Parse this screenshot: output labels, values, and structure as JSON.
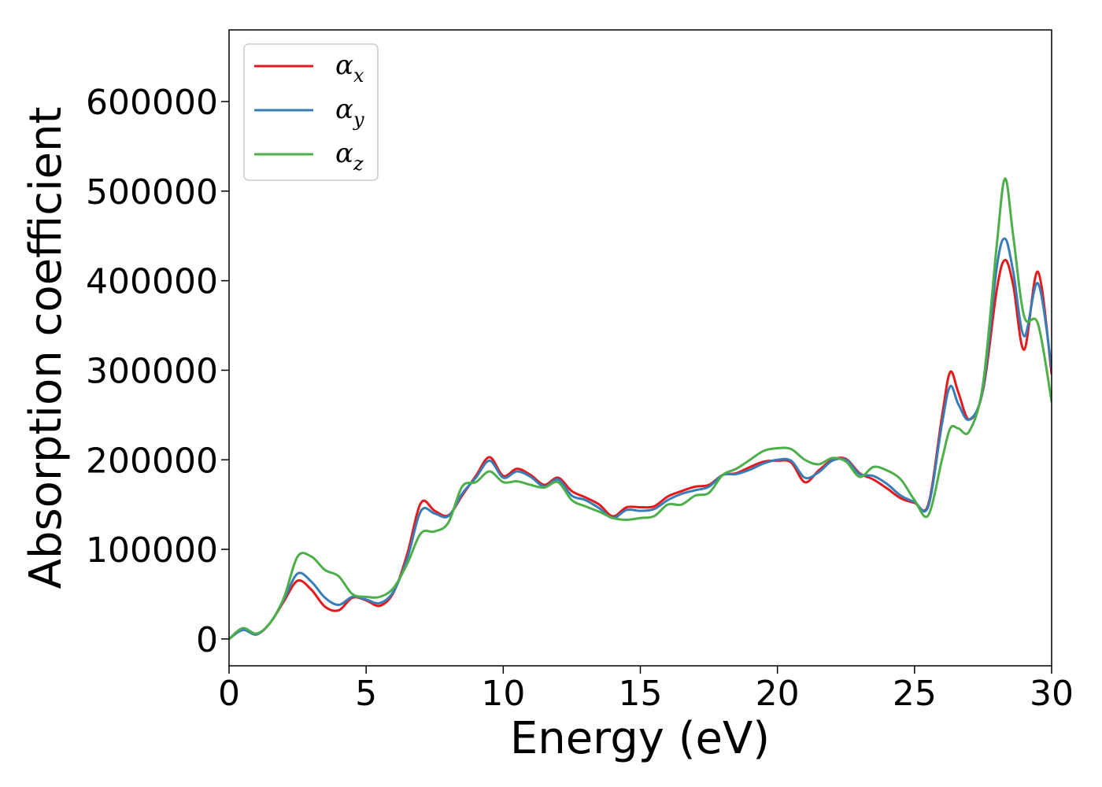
{
  "chart_data": {
    "type": "line",
    "xlabel": "Energy (eV)",
    "ylabel": "Absorption coefficient",
    "xlim": [
      0,
      30
    ],
    "ylim": [
      -30000,
      680000
    ],
    "xticks": [
      "0",
      "5",
      "10",
      "15",
      "20",
      "25",
      "30"
    ],
    "yticks": [
      "0",
      "100000",
      "200000",
      "300000",
      "400000",
      "500000",
      "600000"
    ],
    "grid": false,
    "legend_position": "top-left",
    "x": [
      0,
      0.5,
      1,
      1.5,
      2,
      2.5,
      3,
      3.5,
      4,
      4.5,
      5,
      5.5,
      6,
      6.5,
      7,
      7.5,
      8,
      8.5,
      9,
      9.5,
      10,
      10.5,
      11,
      11.5,
      12,
      12.5,
      13,
      13.5,
      14,
      14.5,
      15,
      15.5,
      16,
      16.5,
      17,
      17.5,
      18,
      18.5,
      19,
      19.5,
      20,
      20.5,
      21,
      21.5,
      22,
      22.5,
      23,
      23.5,
      24,
      24.5,
      25,
      25.5,
      26,
      26.3,
      26.6,
      27,
      27.5,
      28,
      28.3,
      28.6,
      29,
      29.5,
      30
    ],
    "series": [
      {
        "name": "α",
        "subscript": "x",
        "color": "#e41a1c",
        "values": [
          0,
          11000,
          5000,
          18000,
          42000,
          65000,
          55000,
          36000,
          32000,
          46000,
          43000,
          37000,
          52000,
          95000,
          152000,
          143000,
          138000,
          160000,
          182000,
          203000,
          182000,
          190000,
          183000,
          172000,
          180000,
          165000,
          158000,
          150000,
          137000,
          147000,
          147000,
          148000,
          159000,
          165000,
          170000,
          172000,
          183000,
          185000,
          192000,
          198000,
          199000,
          197000,
          175000,
          188000,
          200000,
          201000,
          185000,
          178000,
          168000,
          157000,
          152000,
          150000,
          248000,
          298000,
          275000,
          245000,
          278000,
          390000,
          423000,
          395000,
          323000,
          410000,
          296000
        ]
      },
      {
        "name": "α",
        "subscript": "y",
        "color": "#377eb8",
        "values": [
          0,
          10000,
          5000,
          18000,
          44000,
          73000,
          64000,
          46000,
          38000,
          47000,
          44000,
          40000,
          53000,
          90000,
          143000,
          140000,
          137000,
          162000,
          180000,
          199000,
          180000,
          187000,
          181000,
          170000,
          178000,
          160000,
          155000,
          146000,
          135000,
          144000,
          143000,
          145000,
          155000,
          162000,
          166000,
          170000,
          183000,
          184000,
          189000,
          196000,
          200000,
          199000,
          180000,
          186000,
          199000,
          200000,
          184000,
          182000,
          173000,
          160000,
          153000,
          148000,
          240000,
          282000,
          262000,
          245000,
          280000,
          415000,
          447000,
          410000,
          338000,
          397000,
          303000
        ]
      },
      {
        "name": "α",
        "subscript": "z",
        "color": "#4daf4a",
        "values": [
          0,
          12000,
          6000,
          18000,
          46000,
          92000,
          92000,
          77000,
          70000,
          50000,
          47000,
          47000,
          57000,
          84000,
          118000,
          120000,
          130000,
          170000,
          175000,
          187000,
          175000,
          176000,
          172000,
          169000,
          175000,
          155000,
          148000,
          142000,
          135000,
          133000,
          135000,
          137000,
          150000,
          150000,
          160000,
          163000,
          183000,
          190000,
          200000,
          210000,
          213000,
          212000,
          200000,
          195000,
          202000,
          198000,
          181000,
          192000,
          188000,
          178000,
          155000,
          138000,
          200000,
          235000,
          235000,
          232000,
          285000,
          440000,
          514000,
          450000,
          360000,
          352000,
          265000
        ]
      }
    ]
  }
}
